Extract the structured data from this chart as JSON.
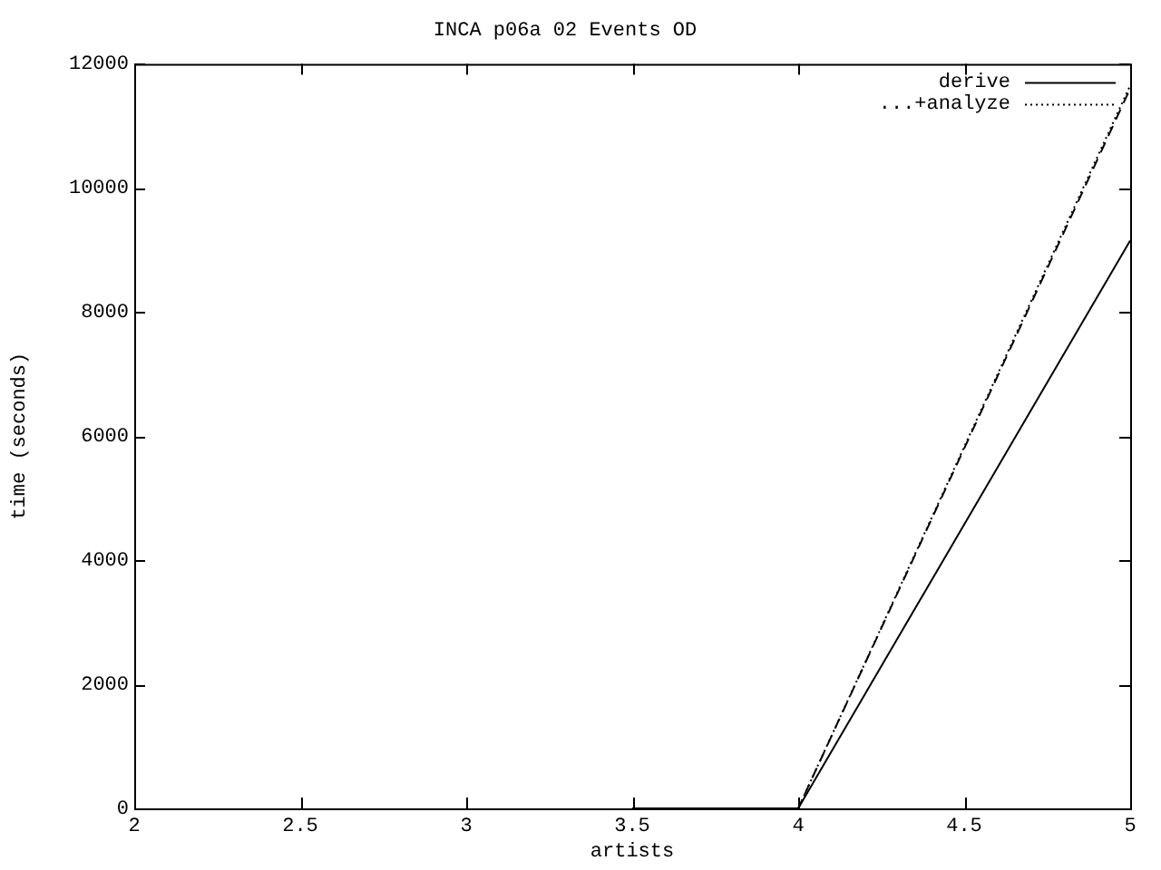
{
  "chart_data": {
    "type": "line",
    "title": "INCA p06a 02 Events OD",
    "xlabel": "artists",
    "ylabel": "time (seconds)",
    "x": [
      3.5,
      4,
      5
    ],
    "series": [
      {
        "name": "derive",
        "color": "#000000",
        "values": [
          0,
          0,
          9150
        ],
        "line_style": "solid"
      },
      {
        "name": "...+analyze",
        "color": "#000000",
        "values": [
          0,
          0,
          11650
        ],
        "line_style": "dotted"
      },
      {
        "color": "#000000",
        "values": [
          0,
          0,
          11600
        ],
        "line_style": "dashed"
      }
    ],
    "xlim": [
      2,
      5
    ],
    "xticks": [
      2,
      2.5,
      3,
      3.5,
      4,
      4.5,
      5
    ],
    "ylim": [
      0,
      12000
    ],
    "yticks": [
      0,
      2000,
      4000,
      6000,
      8000,
      10000,
      12000
    ],
    "legend": "top right",
    "marker": "none"
  }
}
